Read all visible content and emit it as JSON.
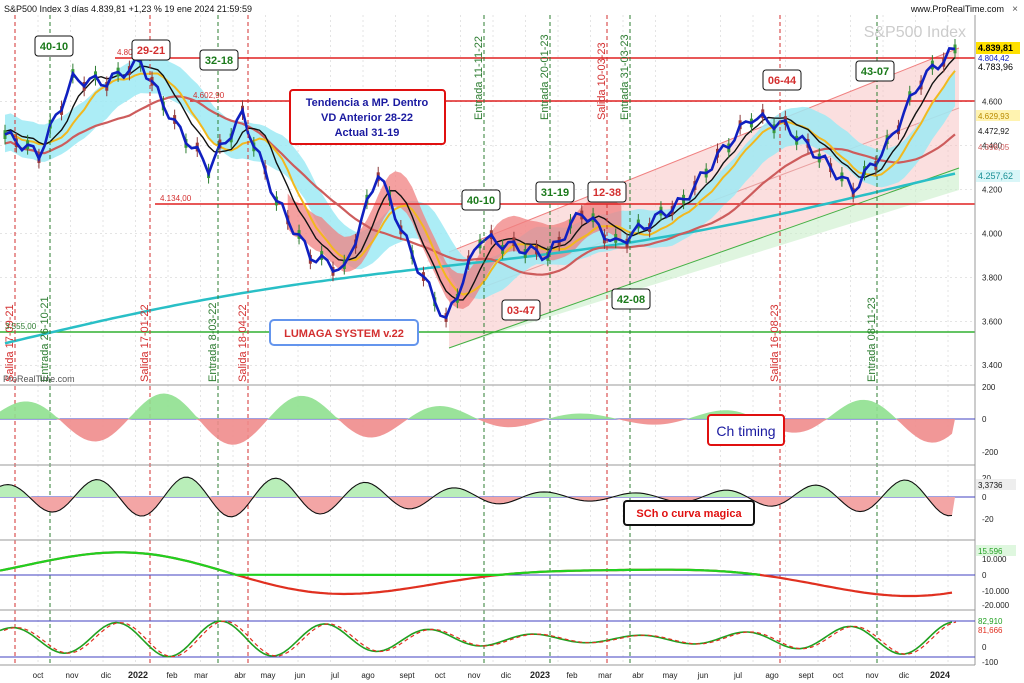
{
  "header": {
    "title": "S&P500 Index 3 días 4.839,81 +1,23 % 19 ene 2024 21:59:59",
    "site": "www.ProRealTime.com",
    "watermark": "S&P500 Index",
    "platform_logo": "ProRealTime.com",
    "close_symbol": "×"
  },
  "main": {
    "price_labels": {
      "current": "4.839,81",
      "upper": "4.804,42",
      "close": "4.783,96",
      "p1": "4.629,93",
      "p2": "4.472,92",
      "p3": "4.398,05",
      "ma200": "4.257,62"
    },
    "level_labels": {
      "top": "4.802,00",
      "mid": "4.602,90",
      "lower": "4.134,00",
      "bottom": "3.555,00"
    },
    "yticks": [
      "4.600",
      "4.400",
      "4.200",
      "4.000",
      "3.800",
      "3.600",
      "3.400"
    ],
    "textbox": {
      "line1": "Tendencia a MP. Dentro",
      "line2": "VD Anterior 28-22",
      "line3": "Actual 31-19"
    },
    "lumaga": "LUMAGA SYSTEM v.22",
    "signals": [
      {
        "label": "Salida 17-09-21",
        "color": "#d32f2f"
      },
      {
        "label": "Entrada 26-10-21",
        "color": "#2e7d32"
      },
      {
        "label": "Salida 17-01-22",
        "color": "#d32f2f"
      },
      {
        "label": "Entrada 8-03-22",
        "color": "#2e7d32"
      },
      {
        "label": "Salida 18-04-22",
        "color": "#d32f2f"
      },
      {
        "label": "Entrada 11-11-22",
        "color": "#2e7d32"
      },
      {
        "label": "Entrada 20-01-23",
        "color": "#2e7d32"
      },
      {
        "label": "Salida 10-03-23",
        "color": "#d32f2f"
      },
      {
        "label": "Entrada 31-03-23",
        "color": "#2e7d32"
      },
      {
        "label": "Salida 16-08-23",
        "color": "#d32f2f"
      },
      {
        "label": "Entrada 08-11-23",
        "color": "#2e7d32"
      }
    ],
    "tags": [
      {
        "text": "40-10",
        "color": "#1b7a1b"
      },
      {
        "text": "29-21",
        "color": "#d32f2f"
      },
      {
        "text": "32-18",
        "color": "#1b7a1b"
      },
      {
        "text": "40-10",
        "color": "#1b7a1b"
      },
      {
        "text": "31-19",
        "color": "#1b7a1b"
      },
      {
        "text": "12-38",
        "color": "#d32f2f"
      },
      {
        "text": "03-47",
        "color": "#d32f2f"
      },
      {
        "text": "42-08",
        "color": "#1b7a1b"
      },
      {
        "text": "06-44",
        "color": "#d32f2f"
      },
      {
        "text": "43-07",
        "color": "#1b7a1b"
      }
    ]
  },
  "panels": {
    "timing": {
      "label": "Ch timing",
      "ticks": [
        "200",
        "0",
        "-200"
      ]
    },
    "sch": {
      "label": "SCh o curva magica",
      "value": "3,3736",
      "ticks": [
        "20",
        "0",
        "-20"
      ]
    },
    "p3": {
      "value": "15.596",
      "ticks": [
        "10.000",
        "0",
        "-10.000",
        "-20.000"
      ]
    },
    "p4": {
      "value1": "82,910",
      "value2": "81,666",
      "ticks": [
        "0",
        "-100"
      ]
    }
  },
  "xaxis": [
    "oct",
    "nov",
    "dic",
    "2022",
    "feb",
    "mar",
    "abr",
    "may",
    "jun",
    "jul",
    "ago",
    "sept",
    "oct",
    "nov",
    "dic",
    "2023",
    "feb",
    "mar",
    "abr",
    "may",
    "jun",
    "jul",
    "ago",
    "sept",
    "oct",
    "nov",
    "dic",
    "2024"
  ],
  "colors": {
    "grid": "#c8c8c8",
    "price": "#1020c0",
    "ma_fast": "#f2b81e",
    "ma_mid": "#cd5c5c",
    "ma_slow": "#29bfc6",
    "cloud": "#7fe3f2",
    "kumo_red": "#f08080",
    "level": "#e02020",
    "green_line": "#30b030"
  },
  "chart_data": {
    "type": "line",
    "title": "S&P500 Index 3 días",
    "yrange": [
      3400,
      4900
    ],
    "levels": [
      4802,
      4602.9,
      4134,
      3555
    ],
    "series": [
      {
        "name": "S&P500 Index",
        "x": [
          "sept 2021",
          "oct 2021",
          "nov 2021",
          "dic 2021",
          "2022",
          "feb 2022",
          "mar 2022",
          "abr 2022",
          "may 2022",
          "jun 2022",
          "jul 2022",
          "ago 2022",
          "sept 2022",
          "oct 2022",
          "nov 2022",
          "dic 2022",
          "2023",
          "feb 2023",
          "mar 2023",
          "abr 2023",
          "may 2023",
          "jun 2023",
          "jul 2023",
          "ago 2023",
          "sept 2023",
          "oct 2023",
          "nov 2023",
          "dic 2023",
          "2024"
        ],
        "values": [
          4450,
          4360,
          4700,
          4690,
          4780,
          4500,
          4300,
          4540,
          4150,
          3900,
          3830,
          4280,
          3900,
          3600,
          3980,
          3940,
          3900,
          4100,
          3950,
          4050,
          4150,
          4350,
          4530,
          4490,
          4350,
          4200,
          4400,
          4700,
          4840
        ]
      }
    ]
  }
}
